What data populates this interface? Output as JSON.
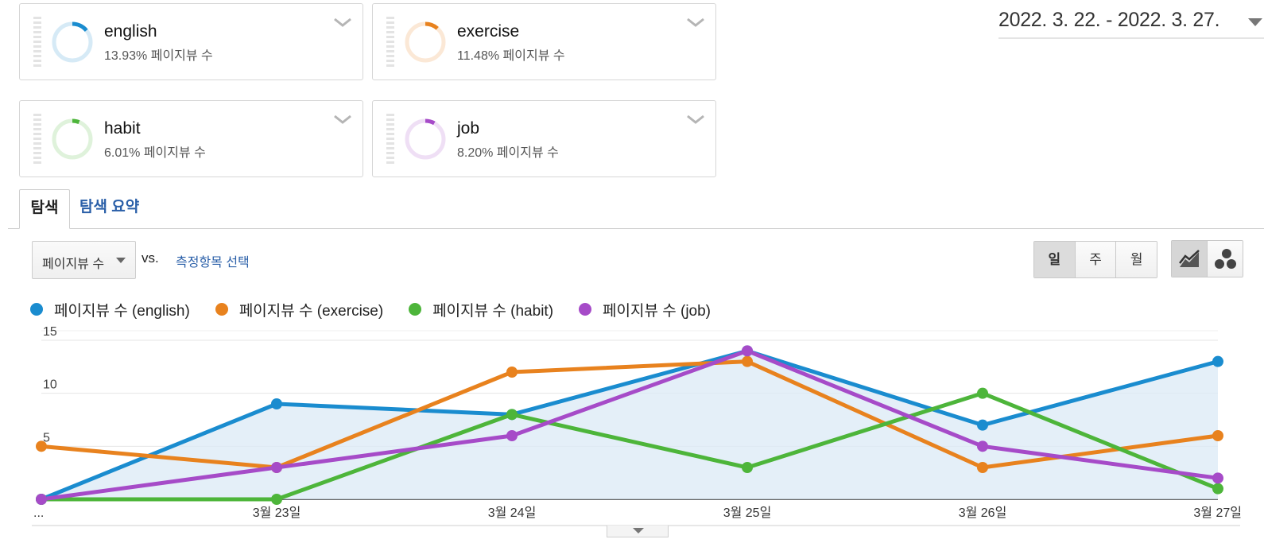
{
  "segments": [
    {
      "name": "english",
      "percent": "13.93%",
      "metric_label": "페이지뷰 수",
      "color": "#1a8ccf",
      "share": 0.1393
    },
    {
      "name": "exercise",
      "percent": "11.48%",
      "metric_label": "페이지뷰 수",
      "color": "#e8821e",
      "share": 0.1148
    },
    {
      "name": "habit",
      "percent": "6.01%",
      "metric_label": "페이지뷰 수",
      "color": "#4db53a",
      "share": 0.0601
    },
    {
      "name": "job",
      "percent": "8.20%",
      "metric_label": "페이지뷰 수",
      "color": "#a64bc8",
      "share": 0.082
    }
  ],
  "date_range": "2022. 3. 22. - 2022. 3. 27.",
  "tabs": {
    "active": "탐색",
    "other": "탐색 요약"
  },
  "controls": {
    "metric": "페이지뷰 수",
    "vs": "vs.",
    "compare_link": "측정항목 선택",
    "granularity": [
      "일",
      "주",
      "월"
    ],
    "granularity_selected": "일",
    "view_icons": [
      "line-chart-icon",
      "motion-chart-icon"
    ]
  },
  "legend": [
    {
      "label": "페이지뷰 수 (english)",
      "color": "#1a8ccf"
    },
    {
      "label": "페이지뷰 수 (exercise)",
      "color": "#e8821e"
    },
    {
      "label": "페이지뷰 수 (habit)",
      "color": "#4db53a"
    },
    {
      "label": "페이지뷰 수 (job)",
      "color": "#a64bc8"
    }
  ],
  "chart_data": {
    "type": "line",
    "categories": [
      "...",
      "3월 23일",
      "3월 24일",
      "3월 25일",
      "3월 26일",
      "3월 27일"
    ],
    "yticks": [
      5,
      10,
      15
    ],
    "ylim": [
      0,
      15
    ],
    "grid": true,
    "area_fill_series": "페이지뷰 수 (english)",
    "series": [
      {
        "name": "페이지뷰 수 (english)",
        "color": "#1a8ccf",
        "values": [
          0,
          9,
          8,
          14,
          7,
          13
        ]
      },
      {
        "name": "페이지뷰 수 (exercise)",
        "color": "#e8821e",
        "values": [
          5,
          3,
          12,
          13,
          3,
          6
        ]
      },
      {
        "name": "페이지뷰 수 (habit)",
        "color": "#4db53a",
        "values": [
          0,
          0,
          8,
          3,
          10,
          1
        ]
      },
      {
        "name": "페이지뷰 수 (job)",
        "color": "#a64bc8",
        "values": [
          0,
          3,
          6,
          14,
          5,
          2
        ]
      }
    ]
  }
}
